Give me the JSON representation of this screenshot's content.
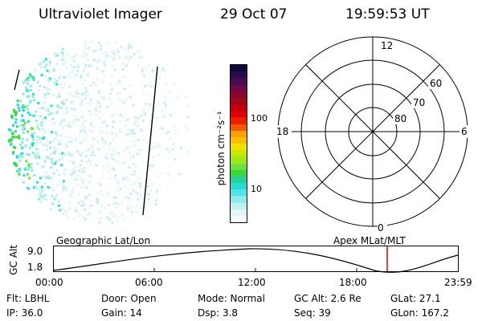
{
  "header": {
    "title": "Ultraviolet Imager",
    "date": "29 Oct 07",
    "time": "19:59:53 UT"
  },
  "colorbar": {
    "label": "photon cm⁻²s⁻¹",
    "ticks": [
      "100",
      "10"
    ],
    "colors": [
      "#0a0a3c",
      "#2a0a4a",
      "#4a0a52",
      "#6a0848",
      "#8a0630",
      "#a00818",
      "#c00010",
      "#dc0008",
      "#ec2000",
      "#f25800",
      "#f8a000",
      "#fac000",
      "#f4e000",
      "#c8e800",
      "#9ee81e",
      "#6ee040",
      "#3ad83e",
      "#28d098",
      "#28dcd4",
      "#50e4e4",
      "#8ceaea",
      "#c2f0f0",
      "#e2f6f6",
      "#f2fafa"
    ]
  },
  "polar": {
    "clock_labels": {
      "top": "12",
      "right": "6",
      "bottom": "0",
      "left": "18"
    },
    "lat_labels": [
      "60",
      "70",
      "80"
    ]
  },
  "altitude_plot": {
    "ylabel": "GC Alt",
    "yticks": [
      "9.0",
      "1.8"
    ],
    "left_title": "Geographic Lat/Lon",
    "right_title": "Apex  MLat/MLT",
    "xticks": [
      "00:00",
      "06:00",
      "12:00",
      "18:00",
      "23:59"
    ],
    "marker_color": "#e00000"
  },
  "info": {
    "flt": "Flt: LBHL",
    "ip": "IP: 36.0",
    "door": "Door: Open",
    "gain": "Gain: 14",
    "mode": "Mode:  Normal",
    "dsp": "Dsp:      3.8",
    "gcalt": "GC Alt: 2.6 Re",
    "seq": "Seq: 39",
    "glat": "GLat:  27.1",
    "glon": "GLon: 167.2"
  }
}
